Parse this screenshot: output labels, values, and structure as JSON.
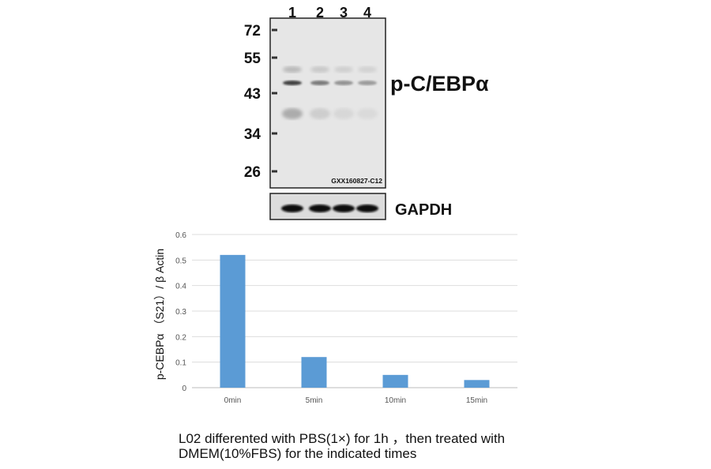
{
  "blot": {
    "lanes": [
      "1",
      "2",
      "3",
      "4"
    ],
    "markers": [
      "72",
      "55",
      "43",
      "34",
      "26"
    ],
    "target_label": "p-C/EBPα",
    "watermark": "GXX160827-C12",
    "loading_control_label": "GAPDH"
  },
  "chart_data": {
    "type": "bar",
    "categories": [
      "0min",
      "5min",
      "10min",
      "15min"
    ],
    "values": [
      0.52,
      0.12,
      0.05,
      0.03
    ],
    "title": "",
    "xlabel": "",
    "ylabel": "p-CEBPα （S21）/ β Actin",
    "ylim": [
      0,
      0.6
    ],
    "yticks": [
      "0",
      "0.1",
      "0.2",
      "0.3",
      "0.4",
      "0.5",
      "0.6"
    ],
    "grid": true,
    "bar_color": "#5b9bd5"
  },
  "caption": {
    "line1": "L02 differented with PBS(1×) for 1h ，then treated with",
    "line2": "DMEM(10%FBS) for the indicated times"
  }
}
